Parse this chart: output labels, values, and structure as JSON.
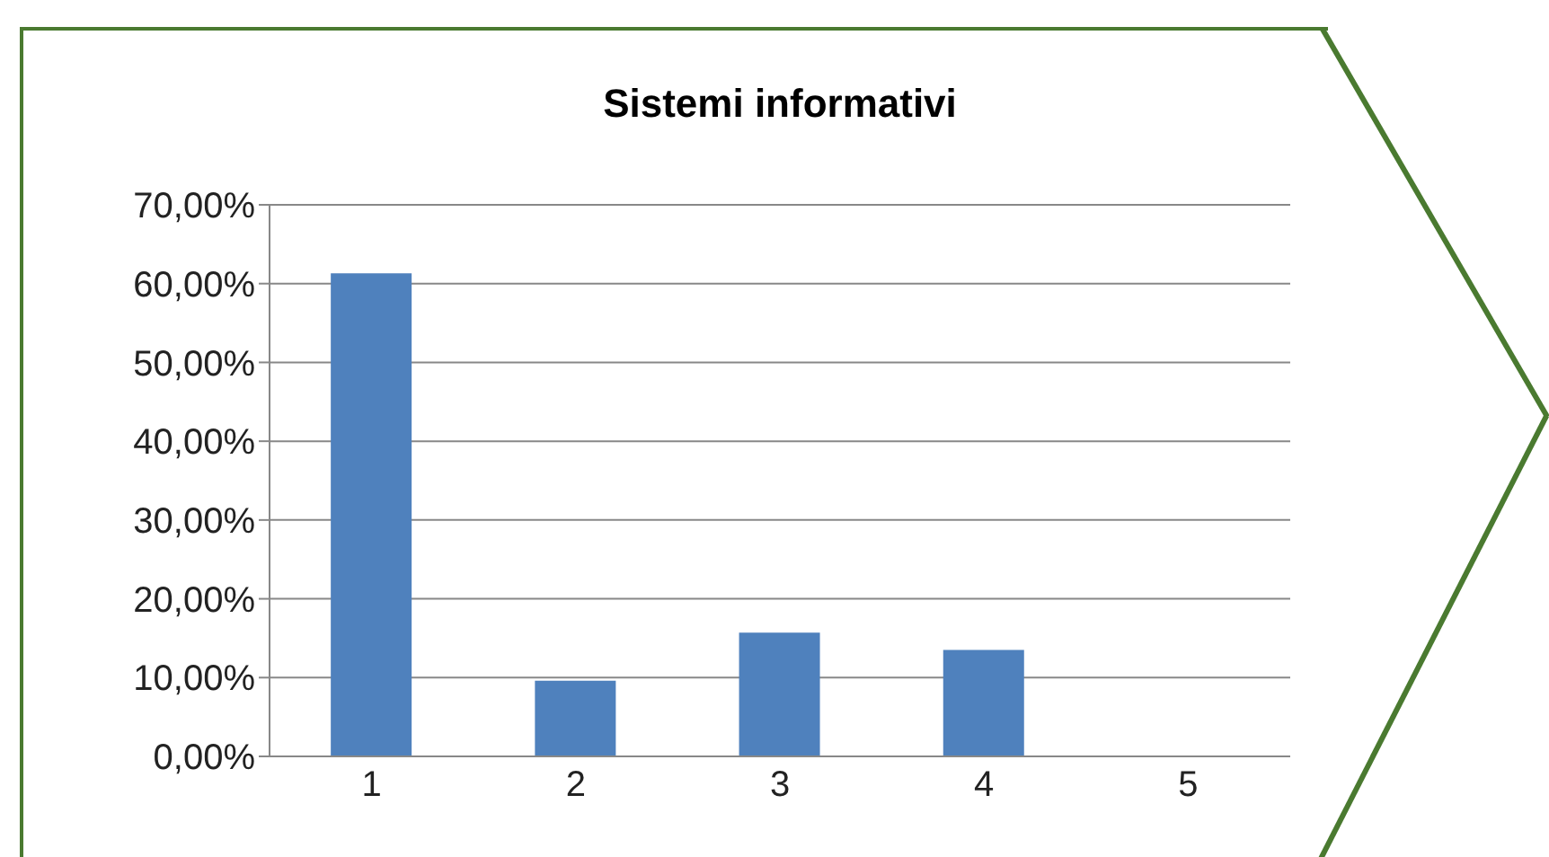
{
  "chart_data": {
    "type": "bar",
    "title": "Sistemi informativi",
    "categories": [
      "1",
      "2",
      "3",
      "4",
      "5"
    ],
    "values": [
      61.3,
      9.6,
      15.7,
      13.5,
      0
    ],
    "color": "#4f81bd",
    "ylim": [
      0,
      70
    ],
    "yticks": [
      {
        "value": 0,
        "label": "0,00%"
      },
      {
        "value": 10,
        "label": "10,00%"
      },
      {
        "value": 20,
        "label": "20,00%"
      },
      {
        "value": 30,
        "label": "30,00%"
      },
      {
        "value": 40,
        "label": "40,00%"
      },
      {
        "value": 50,
        "label": "50,00%"
      },
      {
        "value": 60,
        "label": "60,00%"
      },
      {
        "value": 70,
        "label": "70,00%"
      }
    ],
    "grid": "y"
  }
}
